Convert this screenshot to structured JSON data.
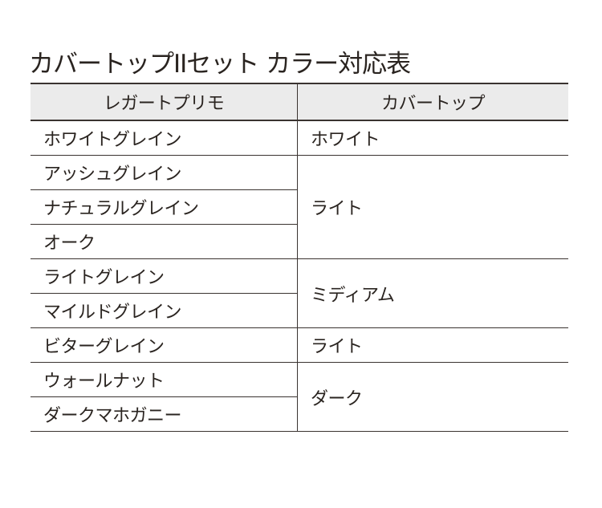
{
  "title": "カバートップIIセット カラー対応表",
  "headers": {
    "left": "レガートプリモ",
    "right": "カバートップ"
  },
  "rows": [
    "ホワイトグレイン",
    "アッシュグレイン",
    "ナチュラルグレイン",
    "オーク",
    "ライトグレイン",
    "マイルドグレイン",
    "ビターグレイン",
    "ウォールナット",
    "ダークマホガニー"
  ],
  "groups": [
    "ホワイト",
    "ライト",
    "ミディアム",
    "ライト",
    "ダーク"
  ]
}
